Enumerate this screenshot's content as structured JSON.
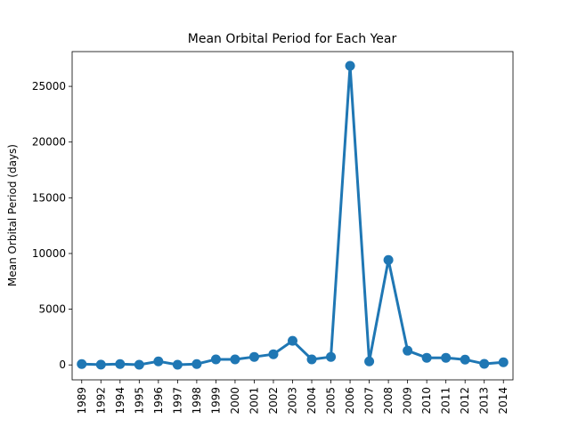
{
  "chart_data": {
    "type": "point",
    "title": "Mean Orbital Period for Each Year",
    "y_label": "Mean Orbital Period (days)",
    "categories": [
      "1989",
      "1992",
      "1994",
      "1995",
      "1996",
      "1997",
      "1998",
      "1999",
      "2000",
      "2001",
      "2002",
      "2003",
      "2004",
      "2005",
      "2006",
      "2007",
      "2008",
      "2009",
      "2010",
      "2011",
      "2012",
      "2013",
      "2014"
    ],
    "values": [
      80,
      30,
      80,
      20,
      320,
      20,
      80,
      500,
      500,
      720,
      960,
      2160,
      500,
      720,
      26840,
      320,
      9420,
      1280,
      640,
      640,
      480,
      100,
      240
    ],
    "color": "#1f77b4",
    "ylim": [
      -1340,
      28120
    ],
    "yticks": [
      0,
      5000,
      10000,
      15000,
      20000,
      25000
    ],
    "grid": false
  }
}
